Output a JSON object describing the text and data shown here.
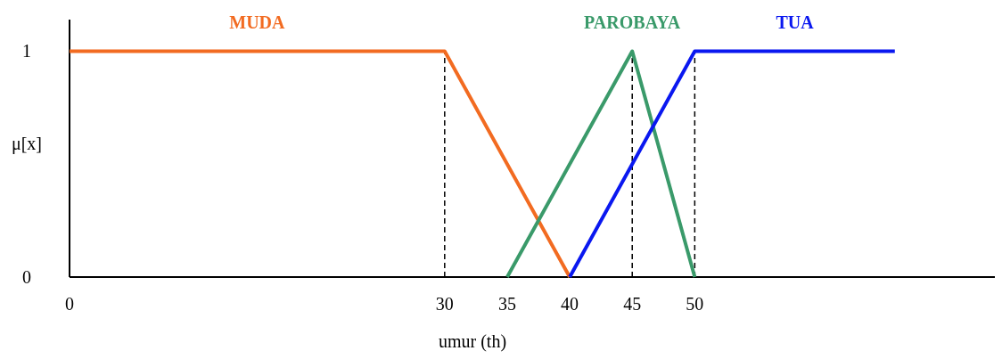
{
  "chart_data": {
    "type": "line",
    "xlabel": "umur (th)",
    "ylabel": "μ[x]",
    "xlim": [
      0,
      74
    ],
    "xticks": [
      0,
      30,
      35,
      40,
      45,
      50
    ],
    "ylim": [
      0,
      1.14
    ],
    "yticks": [
      0,
      1
    ],
    "line_style": "solid",
    "series": [
      {
        "name": "MUDA",
        "color": "#f26b21",
        "x": [
          0,
          30,
          40
        ],
        "values": [
          1,
          1,
          0
        ]
      },
      {
        "name": "PAROBAYA",
        "color": "#3a9a6a",
        "x": [
          35,
          45,
          50
        ],
        "values": [
          0,
          1,
          0
        ]
      },
      {
        "name": "TUA",
        "color": "#0a18f0",
        "x": [
          40,
          50,
          66
        ],
        "values": [
          0,
          1,
          1
        ]
      }
    ],
    "ref_lines": [
      {
        "axis": "x",
        "value": 30,
        "line_style": "dashed",
        "color": "#000000"
      },
      {
        "axis": "x",
        "value": 45,
        "line_style": "dashed",
        "color": "#000000"
      },
      {
        "axis": "x",
        "value": 50,
        "line_style": "dashed",
        "color": "#000000"
      }
    ]
  }
}
